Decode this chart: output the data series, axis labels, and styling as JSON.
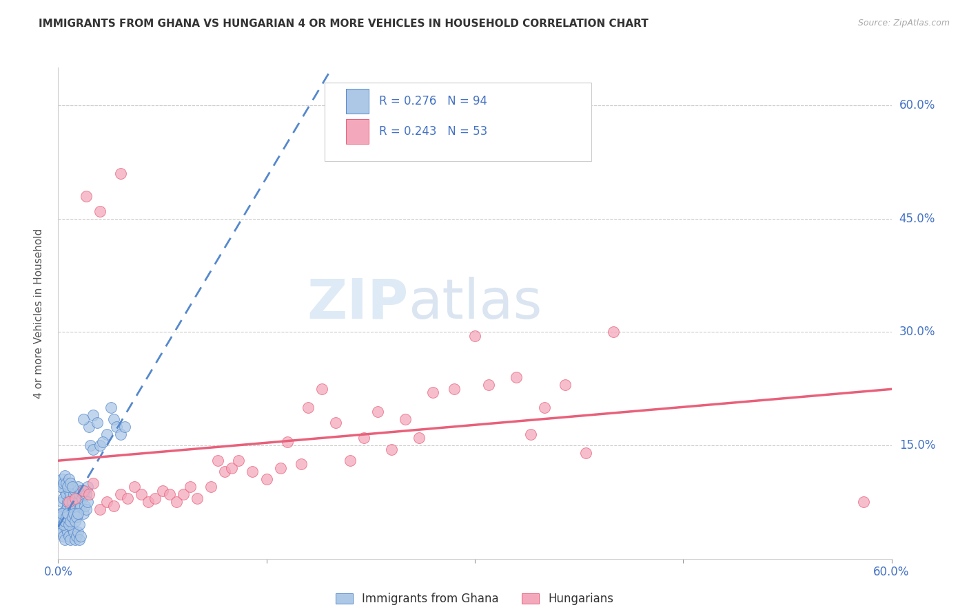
{
  "title": "IMMIGRANTS FROM GHANA VS HUNGARIAN 4 OR MORE VEHICLES IN HOUSEHOLD CORRELATION CHART",
  "source": "Source: ZipAtlas.com",
  "ylabel": "4 or more Vehicles in Household",
  "xlim": [
    0.0,
    0.6
  ],
  "ylim": [
    0.0,
    0.65
  ],
  "legend_label1": "Immigrants from Ghana",
  "legend_label2": "Hungarians",
  "legend_R1": "R = 0.276",
  "legend_N1": "N = 94",
  "legend_R2": "R = 0.243",
  "legend_N2": "N = 53",
  "color_ghana": "#adc8e6",
  "color_hungarian": "#f4a8bb",
  "color_ghana_line": "#5588cc",
  "color_hungarian_line": "#e8607a",
  "watermark_zip": "ZIP",
  "watermark_atlas": "atlas",
  "ghana_x": [
    0.002,
    0.003,
    0.003,
    0.004,
    0.004,
    0.005,
    0.005,
    0.006,
    0.006,
    0.007,
    0.007,
    0.007,
    0.008,
    0.008,
    0.009,
    0.009,
    0.01,
    0.01,
    0.01,
    0.011,
    0.011,
    0.012,
    0.012,
    0.013,
    0.013,
    0.014,
    0.014,
    0.015,
    0.015,
    0.016,
    0.016,
    0.017,
    0.018,
    0.018,
    0.019,
    0.019,
    0.02,
    0.02,
    0.021,
    0.021,
    0.002,
    0.003,
    0.004,
    0.005,
    0.006,
    0.007,
    0.008,
    0.009,
    0.01,
    0.011,
    0.012,
    0.013,
    0.014,
    0.015,
    0.016,
    0.001,
    0.002,
    0.003,
    0.004,
    0.005,
    0.006,
    0.007,
    0.008,
    0.009,
    0.01,
    0.011,
    0.012,
    0.013,
    0.014,
    0.015,
    0.001,
    0.002,
    0.003,
    0.004,
    0.005,
    0.006,
    0.007,
    0.008,
    0.009,
    0.01,
    0.023,
    0.025,
    0.03,
    0.035,
    0.025,
    0.022,
    0.018,
    0.04,
    0.038,
    0.042,
    0.032,
    0.028,
    0.045,
    0.048
  ],
  "ghana_y": [
    0.06,
    0.045,
    0.075,
    0.06,
    0.08,
    0.055,
    0.09,
    0.065,
    0.085,
    0.07,
    0.095,
    0.075,
    0.06,
    0.09,
    0.065,
    0.085,
    0.055,
    0.075,
    0.095,
    0.065,
    0.085,
    0.07,
    0.09,
    0.06,
    0.08,
    0.075,
    0.095,
    0.065,
    0.085,
    0.07,
    0.09,
    0.08,
    0.06,
    0.085,
    0.07,
    0.09,
    0.065,
    0.085,
    0.075,
    0.095,
    0.04,
    0.035,
    0.03,
    0.025,
    0.04,
    0.035,
    0.03,
    0.025,
    0.04,
    0.035,
    0.025,
    0.03,
    0.035,
    0.025,
    0.03,
    0.05,
    0.055,
    0.06,
    0.045,
    0.05,
    0.055,
    0.06,
    0.045,
    0.05,
    0.055,
    0.06,
    0.05,
    0.055,
    0.06,
    0.045,
    0.1,
    0.095,
    0.105,
    0.1,
    0.11,
    0.1,
    0.095,
    0.105,
    0.1,
    0.095,
    0.15,
    0.145,
    0.15,
    0.165,
    0.19,
    0.175,
    0.185,
    0.185,
    0.2,
    0.175,
    0.155,
    0.18,
    0.165,
    0.175
  ],
  "hungarian_x": [
    0.008,
    0.012,
    0.018,
    0.022,
    0.025,
    0.03,
    0.035,
    0.04,
    0.045,
    0.05,
    0.055,
    0.06,
    0.065,
    0.07,
    0.075,
    0.08,
    0.085,
    0.09,
    0.095,
    0.1,
    0.11,
    0.115,
    0.12,
    0.125,
    0.13,
    0.14,
    0.15,
    0.16,
    0.165,
    0.175,
    0.18,
    0.19,
    0.2,
    0.21,
    0.22,
    0.23,
    0.24,
    0.25,
    0.26,
    0.27,
    0.285,
    0.3,
    0.31,
    0.33,
    0.34,
    0.35,
    0.365,
    0.38,
    0.4,
    0.58,
    0.02,
    0.03,
    0.045
  ],
  "hungarian_y": [
    0.075,
    0.08,
    0.09,
    0.085,
    0.1,
    0.065,
    0.075,
    0.07,
    0.085,
    0.08,
    0.095,
    0.085,
    0.075,
    0.08,
    0.09,
    0.085,
    0.075,
    0.085,
    0.095,
    0.08,
    0.095,
    0.13,
    0.115,
    0.12,
    0.13,
    0.115,
    0.105,
    0.12,
    0.155,
    0.125,
    0.2,
    0.225,
    0.18,
    0.13,
    0.16,
    0.195,
    0.145,
    0.185,
    0.16,
    0.22,
    0.225,
    0.295,
    0.23,
    0.24,
    0.165,
    0.2,
    0.23,
    0.14,
    0.3,
    0.075,
    0.48,
    0.46,
    0.51
  ]
}
